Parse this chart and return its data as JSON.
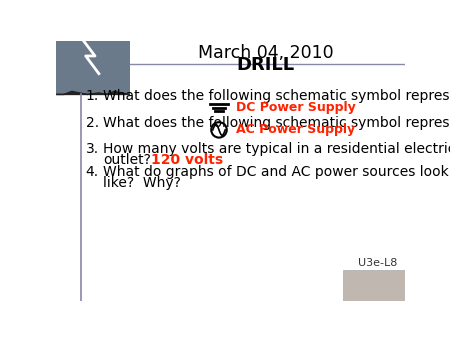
{
  "title": "March 04, 2010",
  "subtitle": "DRILL",
  "bg_color": "#ffffff",
  "border_left_color": "#8888aa",
  "border_top_color": "#8888aa",
  "title_color": "#000000",
  "subtitle_color": "#000000",
  "body_color": "#000000",
  "answer_color": "#ff2200",
  "q1_text": "What does the following schematic symbol represent?",
  "q1_answer": "DC Power Supply",
  "q2_text": "What does the following schematic symbol represent?",
  "q2_answer": "AC Power Supply",
  "q3_line1": "How many volts are typical in a residential electrical",
  "q3_line2": "outlet?",
  "q3_answer": "120 volts",
  "q4_line1": "What do graphs of DC and AC power sources look",
  "q4_line2": "like?  Why?",
  "label": "U3e-L8",
  "img_top_color": "#c0ccd8",
  "img_bot_color": "#c0b8b0"
}
